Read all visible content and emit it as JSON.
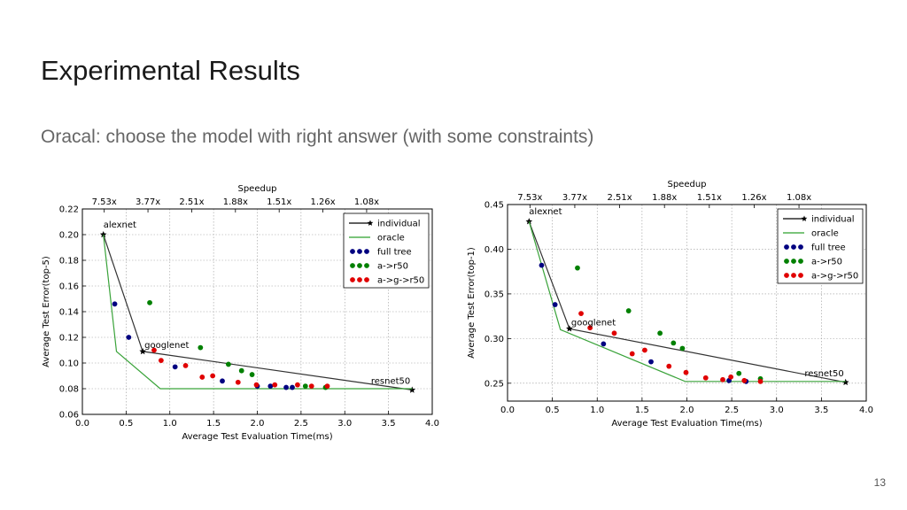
{
  "slide": {
    "title": "Experimental Results",
    "subtitle": "Oracal: choose the model with right answer (with some constraints)",
    "page_number": "13"
  },
  "chart_data": [
    {
      "type": "scatter",
      "speedup_title": "Speedup",
      "speedup_ticks": [
        {
          "x": 0.25,
          "label": "7.53x"
        },
        {
          "x": 0.75,
          "label": "3.77x"
        },
        {
          "x": 1.25,
          "label": "2.51x"
        },
        {
          "x": 1.75,
          "label": "1.88x"
        },
        {
          "x": 2.25,
          "label": "1.51x"
        },
        {
          "x": 2.75,
          "label": "1.26x"
        },
        {
          "x": 3.25,
          "label": "1.08x"
        }
      ],
      "xlabel": "Average Test Evaluation Time(ms)",
      "ylabel": "Average Test Error(top-5)",
      "xlim": [
        0,
        4
      ],
      "ylim": [
        0.06,
        0.22
      ],
      "xticks": [
        0.0,
        0.5,
        1.0,
        1.5,
        2.0,
        2.5,
        3.0,
        3.5,
        4.0
      ],
      "yticks": [
        0.06,
        0.08,
        0.1,
        0.12,
        0.14,
        0.16,
        0.18,
        0.2,
        0.22
      ],
      "x_tick_labels": [
        "0.0",
        "0.5",
        "1.0",
        "1.5",
        "2.0",
        "2.5",
        "3.0",
        "3.5",
        "4.0"
      ],
      "y_tick_labels": [
        "0.06",
        "0.08",
        "0.10",
        "0.12",
        "0.14",
        "0.16",
        "0.18",
        "0.20",
        "0.22"
      ],
      "grid": true,
      "legend_position": "top-right",
      "legend": [
        {
          "label": "individual",
          "color": "#000000",
          "kind": "line-star"
        },
        {
          "label": "oracle",
          "color": "#2ca02c",
          "kind": "line"
        },
        {
          "label": "full tree",
          "color": "#000080",
          "kind": "dots"
        },
        {
          "label": "a->r50",
          "color": "#008000",
          "kind": "dots"
        },
        {
          "label": "a->g->r50",
          "color": "#e00000",
          "kind": "dots"
        }
      ],
      "series": [
        {
          "name": "individual",
          "kind": "line",
          "color": "#333333",
          "points": [
            [
              0.24,
              0.2
            ],
            [
              0.69,
              0.109
            ],
            [
              3.77,
              0.079
            ]
          ]
        },
        {
          "name": "oracle",
          "kind": "line",
          "color": "#3aa33a",
          "points": [
            [
              0.24,
              0.2
            ],
            [
              0.39,
              0.109
            ],
            [
              0.89,
              0.08
            ],
            [
              3.77,
              0.08
            ]
          ]
        },
        {
          "name": "full tree",
          "kind": "dots",
          "color": "#000080",
          "points": [
            [
              0.37,
              0.146
            ],
            [
              0.53,
              0.12
            ],
            [
              1.06,
              0.097
            ],
            [
              1.6,
              0.086
            ],
            [
              2.0,
              0.082
            ],
            [
              2.15,
              0.082
            ],
            [
              2.33,
              0.081
            ],
            [
              2.4,
              0.081
            ]
          ]
        },
        {
          "name": "a->r50",
          "kind": "dots",
          "color": "#008000",
          "points": [
            [
              0.77,
              0.147
            ],
            [
              1.35,
              0.112
            ],
            [
              1.67,
              0.099
            ],
            [
              1.82,
              0.094
            ],
            [
              1.94,
              0.091
            ],
            [
              2.55,
              0.082
            ],
            [
              2.78,
              0.081
            ]
          ]
        },
        {
          "name": "a->g->r50",
          "kind": "dots",
          "color": "#e00000",
          "points": [
            [
              0.82,
              0.11
            ],
            [
              0.9,
              0.102
            ],
            [
              1.18,
              0.098
            ],
            [
              1.37,
              0.089
            ],
            [
              1.49,
              0.09
            ],
            [
              1.78,
              0.085
            ],
            [
              1.99,
              0.083
            ],
            [
              2.2,
              0.083
            ],
            [
              2.46,
              0.083
            ],
            [
              2.62,
              0.082
            ],
            [
              2.8,
              0.082
            ]
          ]
        }
      ],
      "annotations": [
        {
          "text": "alexnet",
          "x": 0.24,
          "y": 0.2
        },
        {
          "text": "googlenet",
          "x": 0.69,
          "y": 0.109
        },
        {
          "text": "resnet50",
          "x": 3.77,
          "y": 0.079
        }
      ]
    },
    {
      "type": "scatter",
      "speedup_title": "Speedup",
      "speedup_ticks": [
        {
          "x": 0.25,
          "label": "7.53x"
        },
        {
          "x": 0.75,
          "label": "3.77x"
        },
        {
          "x": 1.25,
          "label": "2.51x"
        },
        {
          "x": 1.75,
          "label": "1.88x"
        },
        {
          "x": 2.25,
          "label": "1.51x"
        },
        {
          "x": 2.75,
          "label": "1.26x"
        },
        {
          "x": 3.25,
          "label": "1.08x"
        }
      ],
      "xlabel": "Average Test Evaluation Time(ms)",
      "ylabel": "Average Test Error(top-1)",
      "xlim": [
        0,
        4
      ],
      "ylim": [
        0.23,
        0.45
      ],
      "xticks": [
        0.0,
        0.5,
        1.0,
        1.5,
        2.0,
        2.5,
        3.0,
        3.5,
        4.0
      ],
      "yticks": [
        0.25,
        0.3,
        0.35,
        0.4,
        0.45
      ],
      "x_tick_labels": [
        "0.0",
        "0.5",
        "1.0",
        "1.5",
        "2.0",
        "2.5",
        "3.0",
        "3.5",
        "4.0"
      ],
      "y_tick_labels": [
        "0.25",
        "0.30",
        "0.35",
        "0.40",
        "0.45"
      ],
      "grid": true,
      "legend_position": "top-right",
      "legend": [
        {
          "label": "individual",
          "color": "#000000",
          "kind": "line-star"
        },
        {
          "label": "oracle",
          "color": "#2ca02c",
          "kind": "line"
        },
        {
          "label": "full tree",
          "color": "#000080",
          "kind": "dots"
        },
        {
          "label": "a->r50",
          "color": "#008000",
          "kind": "dots"
        },
        {
          "label": "a->g->r50",
          "color": "#e00000",
          "kind": "dots"
        }
      ],
      "series": [
        {
          "name": "individual",
          "kind": "line",
          "color": "#333333",
          "points": [
            [
              0.24,
              0.431
            ],
            [
              0.69,
              0.311
            ],
            [
              3.77,
              0.251
            ]
          ]
        },
        {
          "name": "oracle",
          "kind": "line",
          "color": "#3aa33a",
          "points": [
            [
              0.24,
              0.431
            ],
            [
              0.59,
              0.31
            ],
            [
              1.98,
              0.252
            ],
            [
              3.77,
              0.252
            ]
          ]
        },
        {
          "name": "full tree",
          "kind": "dots",
          "color": "#000080",
          "points": [
            [
              0.38,
              0.382
            ],
            [
              0.53,
              0.338
            ],
            [
              1.07,
              0.294
            ],
            [
              1.6,
              0.274
            ],
            [
              2.47,
              0.253
            ],
            [
              2.66,
              0.252
            ]
          ]
        },
        {
          "name": "a->r50",
          "kind": "dots",
          "color": "#008000",
          "points": [
            [
              0.78,
              0.379
            ],
            [
              1.35,
              0.331
            ],
            [
              1.7,
              0.306
            ],
            [
              1.85,
              0.295
            ],
            [
              1.95,
              0.289
            ],
            [
              2.58,
              0.261
            ],
            [
              2.82,
              0.255
            ]
          ]
        },
        {
          "name": "a->g->r50",
          "kind": "dots",
          "color": "#e00000",
          "points": [
            [
              0.82,
              0.328
            ],
            [
              0.92,
              0.312
            ],
            [
              1.19,
              0.306
            ],
            [
              1.39,
              0.283
            ],
            [
              1.53,
              0.287
            ],
            [
              1.8,
              0.269
            ],
            [
              1.99,
              0.262
            ],
            [
              2.21,
              0.256
            ],
            [
              2.4,
              0.254
            ],
            [
              2.49,
              0.257
            ],
            [
              2.64,
              0.253
            ],
            [
              2.82,
              0.252
            ]
          ]
        }
      ],
      "annotations": [
        {
          "text": "alexnet",
          "x": 0.24,
          "y": 0.431
        },
        {
          "text": "googlenet",
          "x": 0.69,
          "y": 0.311
        },
        {
          "text": "resnet50",
          "x": 3.77,
          "y": 0.251
        }
      ]
    }
  ]
}
